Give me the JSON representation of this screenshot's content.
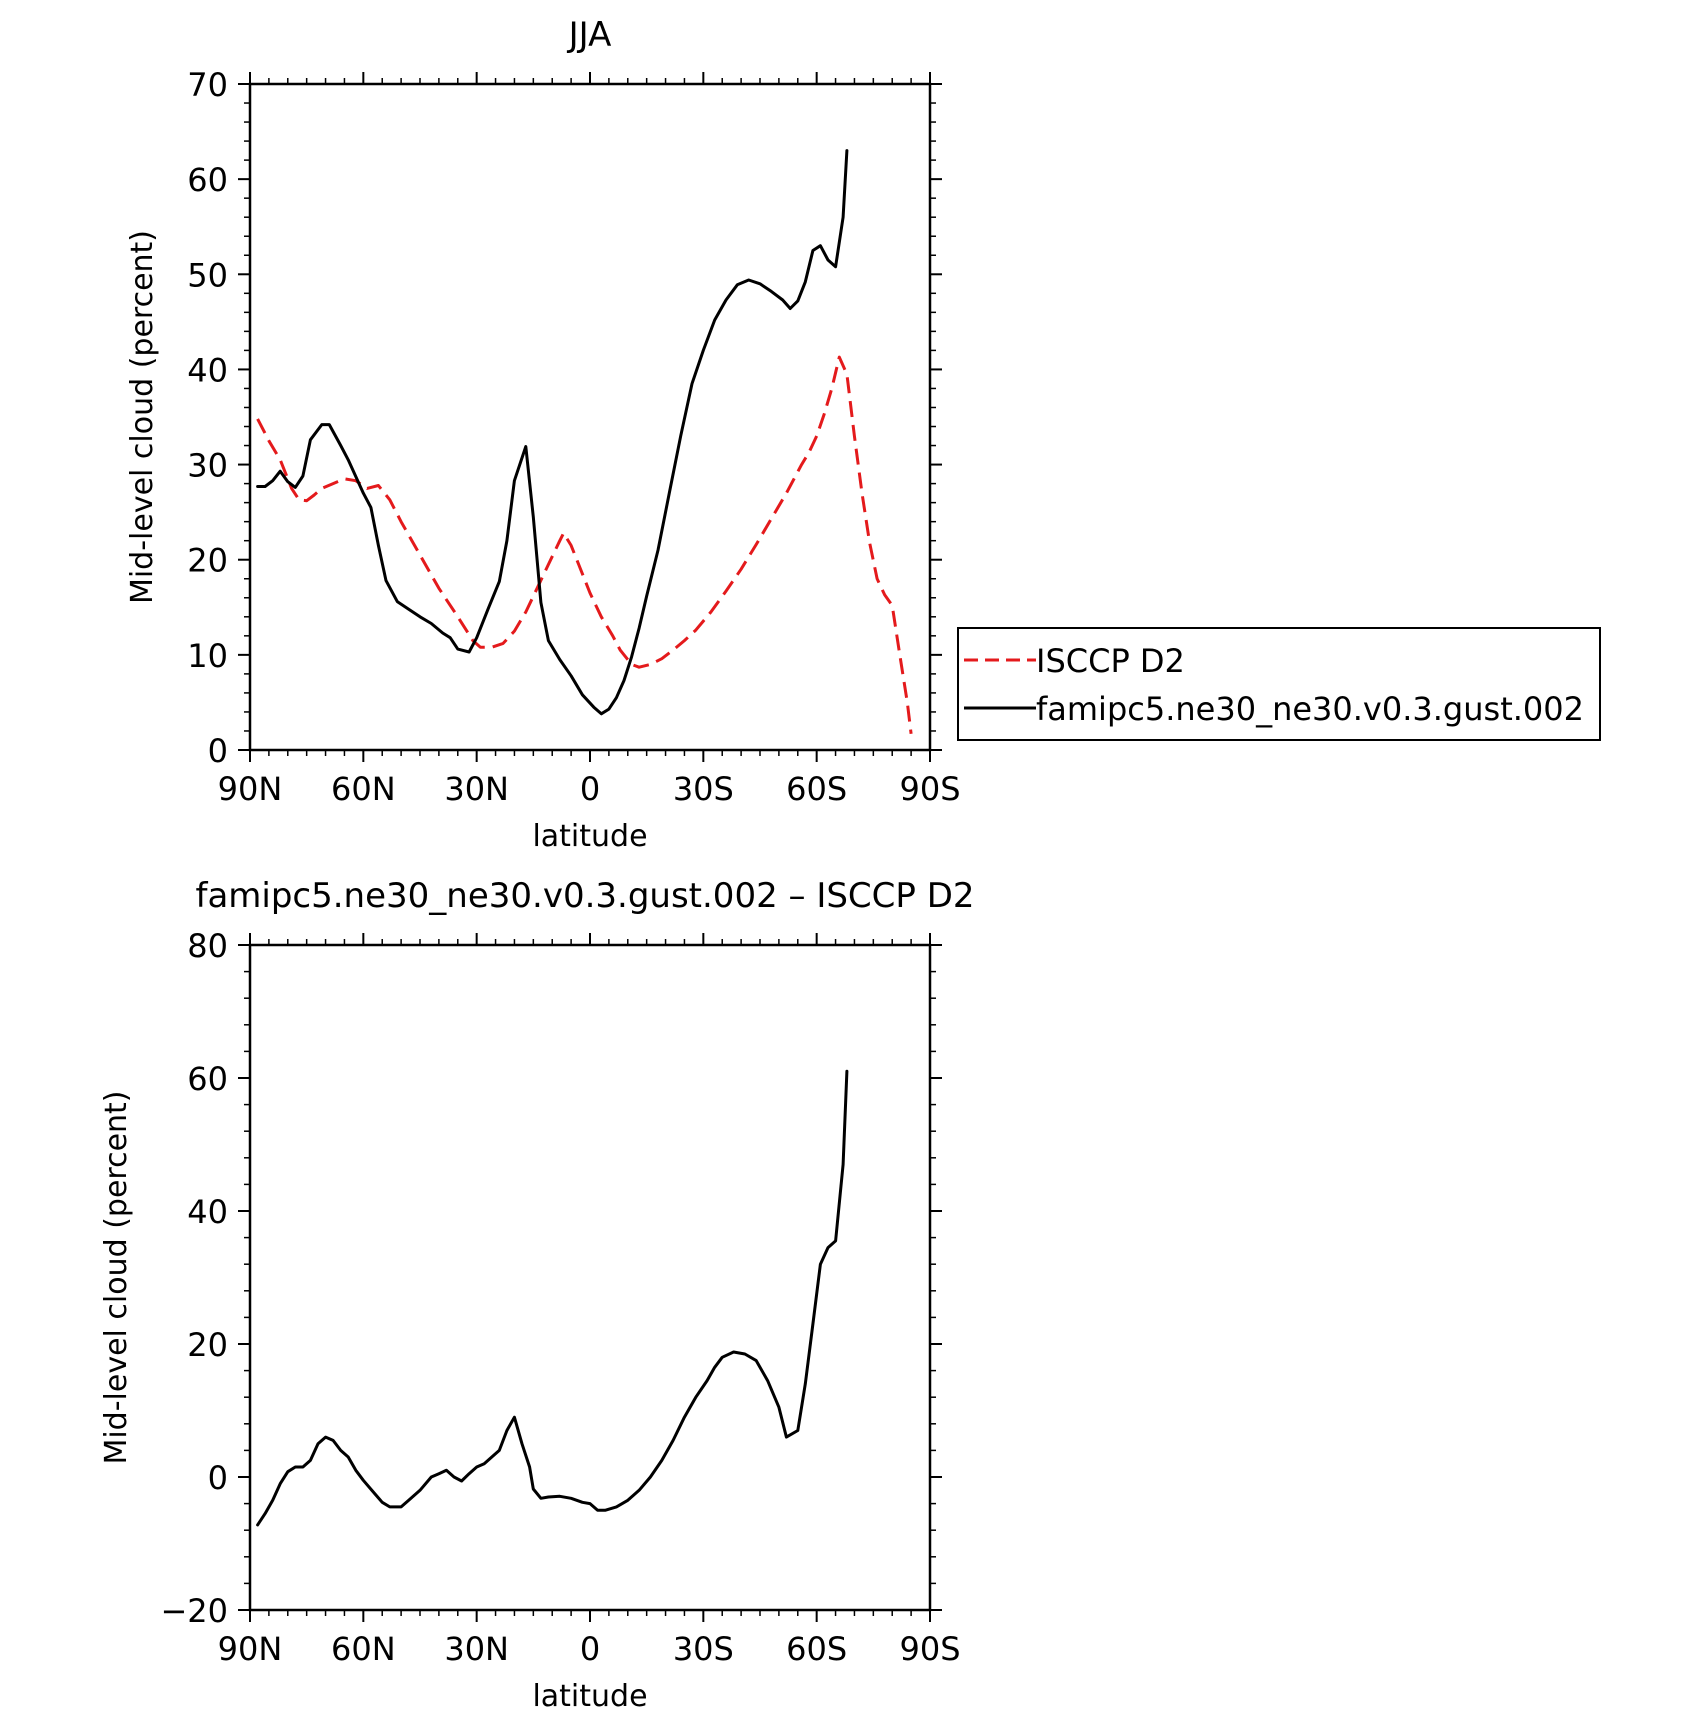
{
  "chart_data": [
    {
      "type": "line",
      "title": "JJA",
      "xlabel": "latitude",
      "ylabel": "Mid-level cloud (percent)",
      "xlim": [
        90,
        -90
      ],
      "ylim": [
        0,
        70
      ],
      "x_ticks": [
        {
          "value": 90,
          "label": "90N"
        },
        {
          "value": 60,
          "label": "60N"
        },
        {
          "value": 30,
          "label": "30N"
        },
        {
          "value": 0,
          "label": "0"
        },
        {
          "value": -30,
          "label": "30S"
        },
        {
          "value": -60,
          "label": "60S"
        },
        {
          "value": -90,
          "label": "90S"
        }
      ],
      "y_ticks": [
        0,
        10,
        20,
        30,
        40,
        50,
        60,
        70
      ],
      "grid": false,
      "legend": {
        "placement": "right",
        "entries": [
          "ISCCP D2",
          "famipc5.ne30_ne30.v0.3.gust.002"
        ]
      },
      "series": [
        {
          "name": "ISCCP D2",
          "color": "#e41a1c",
          "dash": true,
          "points": [
            [
              88,
              34.8
            ],
            [
              85,
              32.5
            ],
            [
              82,
              30.5
            ],
            [
              79,
              27.5
            ],
            [
              77,
              26.3
            ],
            [
              75,
              26.2
            ],
            [
              73,
              26.8
            ],
            [
              71,
              27.5
            ],
            [
              68,
              28
            ],
            [
              65,
              28.5
            ],
            [
              62,
              28.3
            ],
            [
              59,
              27.5
            ],
            [
              56,
              27.8
            ],
            [
              53,
              26.3
            ],
            [
              50,
              24
            ],
            [
              45,
              20.5
            ],
            [
              40,
              17
            ],
            [
              35,
              14
            ],
            [
              31,
              11.5
            ],
            [
              29,
              10.8
            ],
            [
              26,
              10.8
            ],
            [
              23,
              11.2
            ],
            [
              20,
              12.5
            ],
            [
              17,
              14.5
            ],
            [
              14,
              17
            ],
            [
              11,
              19.5
            ],
            [
              8,
              22
            ],
            [
              7,
              22.8
            ],
            [
              5,
              21.5
            ],
            [
              3,
              19.5
            ],
            [
              0,
              16.5
            ],
            [
              -3,
              14
            ],
            [
              -6,
              12
            ],
            [
              -8,
              10.5
            ],
            [
              -11,
              9
            ],
            [
              -13,
              8.7
            ],
            [
              -16,
              9
            ],
            [
              -19,
              9.6
            ],
            [
              -22,
              10.5
            ],
            [
              -25,
              11.5
            ],
            [
              -28,
              12.6
            ],
            [
              -32,
              14.5
            ],
            [
              -36,
              16.7
            ],
            [
              -40,
              19
            ],
            [
              -44,
              21.6
            ],
            [
              -48,
              24.3
            ],
            [
              -52,
              27
            ],
            [
              -56,
              30
            ],
            [
              -58,
              31.3
            ],
            [
              -60,
              33
            ],
            [
              -62,
              35.3
            ],
            [
              -64,
              38
            ],
            [
              -66,
              41.3
            ],
            [
              -68,
              39.5
            ],
            [
              -70,
              33
            ],
            [
              -72,
              27
            ],
            [
              -74,
              21.8
            ],
            [
              -76,
              18
            ],
            [
              -78,
              16.3
            ],
            [
              -80,
              15.2
            ],
            [
              -82,
              10
            ],
            [
              -84,
              5
            ],
            [
              -85,
              1.7
            ]
          ]
        },
        {
          "name": "famipc5.ne30_ne30.v0.3.gust.002",
          "color": "#000000",
          "dash": false,
          "points": [
            [
              88,
              27.7
            ],
            [
              86,
              27.7
            ],
            [
              84,
              28.3
            ],
            [
              82,
              29.3
            ],
            [
              80,
              28.2
            ],
            [
              78,
              27.6
            ],
            [
              76,
              28.8
            ],
            [
              74,
              32.6
            ],
            [
              71,
              34.2
            ],
            [
              69,
              34.2
            ],
            [
              66,
              32
            ],
            [
              64,
              30.5
            ],
            [
              60,
              27
            ],
            [
              58,
              25.5
            ],
            [
              56,
              21.5
            ],
            [
              54,
              17.8
            ],
            [
              51,
              15.6
            ],
            [
              48,
              14.8
            ],
            [
              45,
              14
            ],
            [
              42,
              13.3
            ],
            [
              39,
              12.3
            ],
            [
              37,
              11.8
            ],
            [
              35,
              10.6
            ],
            [
              32,
              10.3
            ],
            [
              30,
              11.8
            ],
            [
              27,
              14.8
            ],
            [
              24,
              17.7
            ],
            [
              22,
              22
            ],
            [
              20,
              28.3
            ],
            [
              17,
              31.9
            ],
            [
              15,
              24.5
            ],
            [
              13,
              15.5
            ],
            [
              11,
              11.5
            ],
            [
              8,
              9.5
            ],
            [
              5,
              7.8
            ],
            [
              2,
              5.8
            ],
            [
              -1,
              4.5
            ],
            [
              -3,
              3.8
            ],
            [
              -5,
              4.3
            ],
            [
              -7,
              5.5
            ],
            [
              -9,
              7.3
            ],
            [
              -11,
              9.8
            ],
            [
              -13,
              12.8
            ],
            [
              -15,
              16.2
            ],
            [
              -18,
              21
            ],
            [
              -21,
              27
            ],
            [
              -24,
              33
            ],
            [
              -27,
              38.5
            ],
            [
              -30,
              42
            ],
            [
              -33,
              45.2
            ],
            [
              -36,
              47.3
            ],
            [
              -39,
              48.9
            ],
            [
              -42,
              49.4
            ],
            [
              -45,
              49
            ],
            [
              -48,
              48.2
            ],
            [
              -51,
              47.3
            ],
            [
              -53,
              46.4
            ],
            [
              -55,
              47.2
            ],
            [
              -57,
              49.2
            ],
            [
              -59,
              52.5
            ],
            [
              -61,
              53
            ],
            [
              -63,
              51.5
            ],
            [
              -65,
              50.8
            ],
            [
              -67,
              56
            ],
            [
              -68,
              63
            ]
          ]
        }
      ]
    },
    {
      "type": "line",
      "title": "famipc5.ne30_ne30.v0.3.gust.002 – ISCCP D2",
      "xlabel": "latitude",
      "ylabel": "Mid-level cloud (percent)",
      "xlim": [
        90,
        -90
      ],
      "ylim": [
        -20,
        80
      ],
      "x_ticks": [
        {
          "value": 90,
          "label": "90N"
        },
        {
          "value": 60,
          "label": "60N"
        },
        {
          "value": 30,
          "label": "30N"
        },
        {
          "value": 0,
          "label": "0"
        },
        {
          "value": -30,
          "label": "30S"
        },
        {
          "value": -60,
          "label": "60S"
        },
        {
          "value": -90,
          "label": "90S"
        }
      ],
      "y_ticks": [
        -20,
        0,
        20,
        40,
        60,
        80
      ],
      "y_tick_labels": [
        "−20",
        "0",
        "20",
        "40",
        "60",
        "80"
      ],
      "grid": false,
      "series": [
        {
          "color": "#000000",
          "dash": false,
          "points": [
            [
              88,
              -7.2
            ],
            [
              86,
              -5.5
            ],
            [
              84,
              -3.5
            ],
            [
              82,
              -1
            ],
            [
              80,
              0.8
            ],
            [
              78,
              1.5
            ],
            [
              76,
              1.5
            ],
            [
              74,
              2.5
            ],
            [
              72,
              5
            ],
            [
              70,
              6
            ],
            [
              68,
              5.5
            ],
            [
              66,
              4
            ],
            [
              64,
              3
            ],
            [
              62,
              1
            ],
            [
              60,
              -0.5
            ],
            [
              57,
              -2.5
            ],
            [
              55,
              -3.8
            ],
            [
              53,
              -4.5
            ],
            [
              50,
              -4.5
            ],
            [
              48,
              -3.5
            ],
            [
              45,
              -2
            ],
            [
              42,
              0
            ],
            [
              40,
              0.5
            ],
            [
              38,
              1
            ],
            [
              36,
              0
            ],
            [
              34,
              -0.6
            ],
            [
              32,
              0.5
            ],
            [
              30,
              1.5
            ],
            [
              28,
              2
            ],
            [
              26,
              3
            ],
            [
              24,
              4
            ],
            [
              22,
              7
            ],
            [
              20,
              9
            ],
            [
              18,
              5
            ],
            [
              16,
              1.5
            ],
            [
              15,
              -1.8
            ],
            [
              13,
              -3.2
            ],
            [
              11,
              -3
            ],
            [
              8,
              -2.9
            ],
            [
              5,
              -3.2
            ],
            [
              2,
              -3.8
            ],
            [
              0,
              -4
            ],
            [
              -2,
              -5
            ],
            [
              -4,
              -5
            ],
            [
              -7,
              -4.5
            ],
            [
              -10,
              -3.5
            ],
            [
              -13,
              -2
            ],
            [
              -16,
              0
            ],
            [
              -19,
              2.5
            ],
            [
              -22,
              5.5
            ],
            [
              -25,
              9
            ],
            [
              -28,
              12
            ],
            [
              -31,
              14.5
            ],
            [
              -33,
              16.5
            ],
            [
              -35,
              18
            ],
            [
              -38,
              18.8
            ],
            [
              -41,
              18.5
            ],
            [
              -44,
              17.5
            ],
            [
              -47,
              14.5
            ],
            [
              -50,
              10.5
            ],
            [
              -52,
              6
            ],
            [
              -55,
              7
            ],
            [
              -57,
              14
            ],
            [
              -59,
              23
            ],
            [
              -61,
              32
            ],
            [
              -63,
              34.5
            ],
            [
              -65,
              35.5
            ],
            [
              -67,
              47
            ],
            [
              -68,
              61
            ]
          ]
        }
      ]
    }
  ]
}
